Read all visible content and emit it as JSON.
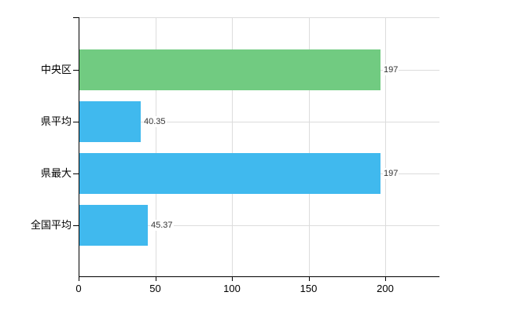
{
  "chart_data": {
    "type": "bar",
    "orientation": "horizontal",
    "title": "",
    "xlabel": "",
    "ylabel": "",
    "categories": [
      "中央区",
      "県平均",
      "県最大",
      "全国平均"
    ],
    "values": [
      197,
      40.35,
      197,
      45.37
    ],
    "value_labels": [
      "197",
      "40.35",
      "197",
      "45.37"
    ],
    "bar_colors": [
      "#71cb81",
      "#40b9ee",
      "#40b9ee",
      "#40b9ee"
    ],
    "x_tick_values": [
      0,
      50,
      100,
      150,
      200
    ],
    "x_tick_labels": [
      "0",
      "50",
      "100",
      "150",
      "200"
    ],
    "xlim": [
      0,
      235
    ],
    "grid": true,
    "legend_position": "none"
  },
  "colors": {
    "green_bar": "#71cb81",
    "blue_bar": "#40b9ee",
    "gridline": "#dcdcdc",
    "axis": "#000000",
    "value_text": "#333333",
    "label_text": "#000000",
    "background": "#ffffff"
  }
}
